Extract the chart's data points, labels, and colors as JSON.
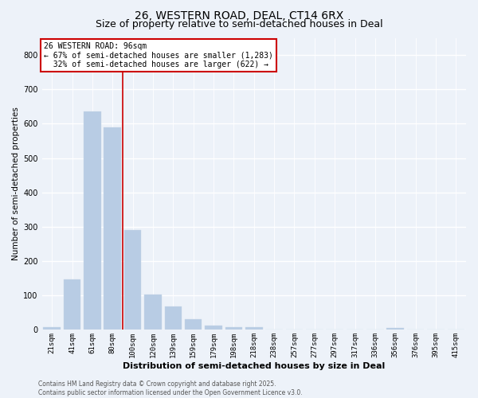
{
  "title": "26, WESTERN ROAD, DEAL, CT14 6RX",
  "subtitle": "Size of property relative to semi-detached houses in Deal",
  "xlabel": "Distribution of semi-detached houses by size in Deal",
  "ylabel": "Number of semi-detached properties",
  "footer": "Contains HM Land Registry data © Crown copyright and database right 2025.\nContains public sector information licensed under the Open Government Licence v3.0.",
  "annotation_title": "26 WESTERN ROAD: 96sqm",
  "annotation_line1": "← 67% of semi-detached houses are smaller (1,283)",
  "annotation_line2": "  32% of semi-detached houses are larger (622) →",
  "vline_x": 3.5,
  "bar_color": "#b8cce4",
  "bar_edge_color": "#c8d8e8",
  "annotation_box_color": "#ffffff",
  "annotation_box_edge": "#cc0000",
  "vline_color": "#cc0000",
  "bg_color": "#edf2f9",
  "categories": [
    "21sqm",
    "41sqm",
    "61sqm",
    "80sqm",
    "100sqm",
    "120sqm",
    "139sqm",
    "159sqm",
    "179sqm",
    "198sqm",
    "218sqm",
    "238sqm",
    "257sqm",
    "277sqm",
    "297sqm",
    "317sqm",
    "336sqm",
    "356sqm",
    "376sqm",
    "395sqm",
    "415sqm"
  ],
  "values": [
    8,
    148,
    636,
    590,
    290,
    104,
    68,
    32,
    12,
    8,
    8,
    2,
    2,
    2,
    0,
    0,
    0,
    5,
    0,
    0,
    0
  ],
  "ylim": [
    0,
    850
  ],
  "yticks": [
    0,
    100,
    200,
    300,
    400,
    500,
    600,
    700,
    800
  ],
  "title_fontsize": 10,
  "subtitle_fontsize": 9,
  "xlabel_fontsize": 8,
  "ylabel_fontsize": 7.5,
  "tick_fontsize": 6.5,
  "footer_fontsize": 5.5,
  "annotation_fontsize": 7
}
